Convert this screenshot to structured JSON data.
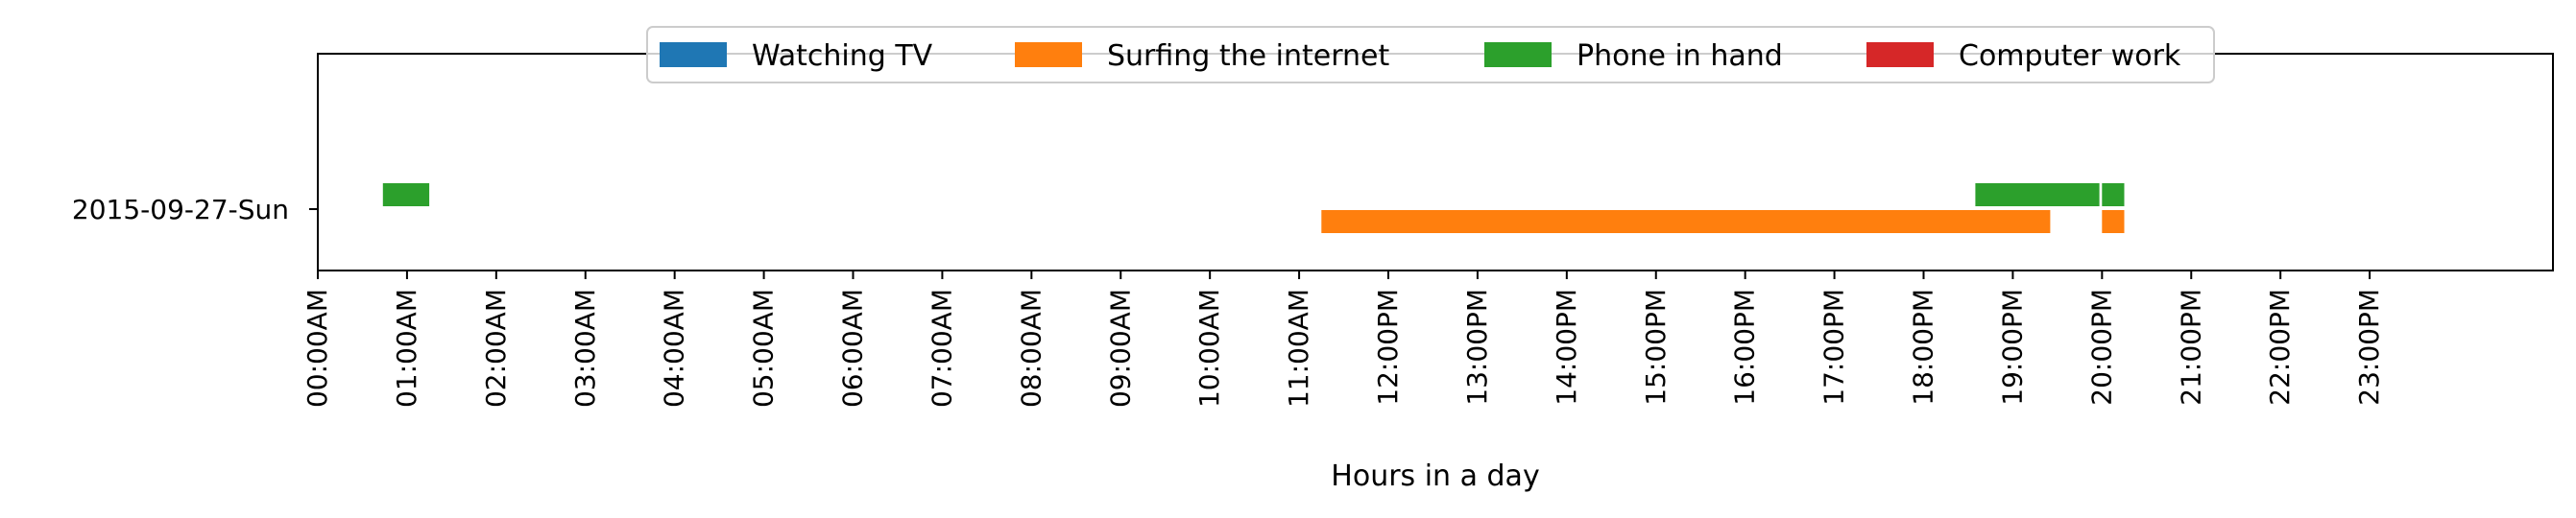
{
  "chart_data": {
    "type": "timeline",
    "title": "",
    "xlabel": "Hours in a day",
    "ylabel": "",
    "xlim": [
      0,
      24
    ],
    "grid": false,
    "legend_placement": "top-center",
    "days": [
      "2015-09-27-Sun"
    ],
    "x_tick_labels": [
      "00:00AM",
      "01:00AM",
      "02:00AM",
      "03:00AM",
      "04:00AM",
      "05:00AM",
      "06:00AM",
      "07:00AM",
      "08:00AM",
      "09:00AM",
      "10:00AM",
      "11:00AM",
      "12:00PM",
      "13:00PM",
      "14:00PM",
      "15:00PM",
      "16:00PM",
      "17:00PM",
      "18:00PM",
      "19:00PM",
      "20:00PM",
      "21:00PM",
      "22:00PM",
      "23:00PM"
    ],
    "series": [
      {
        "name": "Watching TV",
        "color": "#1f77b4",
        "intervals": []
      },
      {
        "name": "Surfing the internet",
        "color": "#ff7f0e",
        "intervals": [
          {
            "day": "2015-09-27-Sun",
            "start": 11.25,
            "end": 19.42
          },
          {
            "day": "2015-09-27-Sun",
            "start": 20.0,
            "end": 20.25
          }
        ]
      },
      {
        "name": "Phone in hand",
        "color": "#2ca02c",
        "intervals": [
          {
            "day": "2015-09-27-Sun",
            "start": 0.73,
            "end": 1.25
          },
          {
            "day": "2015-09-27-Sun",
            "start": 18.58,
            "end": 19.97
          },
          {
            "day": "2015-09-27-Sun",
            "start": 20.0,
            "end": 20.25
          }
        ]
      },
      {
        "name": "Computer work",
        "color": "#d62728",
        "intervals": []
      }
    ]
  }
}
